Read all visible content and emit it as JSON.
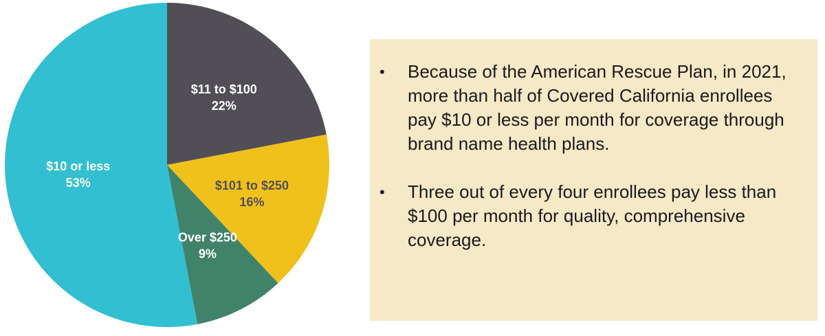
{
  "chart_data": {
    "type": "pie",
    "slices": [
      {
        "label": "$11 to $100",
        "value": 22,
        "value_label": "22%",
        "color": "#524e56",
        "label_color": "#ffffff"
      },
      {
        "label": "$101 to $250",
        "value": 16,
        "value_label": "16%",
        "color": "#f0c11b",
        "label_color": "#524e56"
      },
      {
        "label": "Over $250",
        "value": 9,
        "value_label": "9%",
        "color": "#41826a",
        "label_color": "#ffffff"
      },
      {
        "label": "$10 or less",
        "value": 53,
        "value_label": "53%",
        "color": "#32bfd1",
        "label_color": "#ffffff"
      }
    ]
  },
  "callout": {
    "background": "#f5e9c8",
    "bullets": [
      "Because of the American Rescue Plan, in 2021, more than half of Covered California enrollees pay $10 or less per month for coverage through brand name health plans.",
      "Three out of every four enrollees pay less than $100 per month for quality, comprehensive coverage."
    ]
  }
}
